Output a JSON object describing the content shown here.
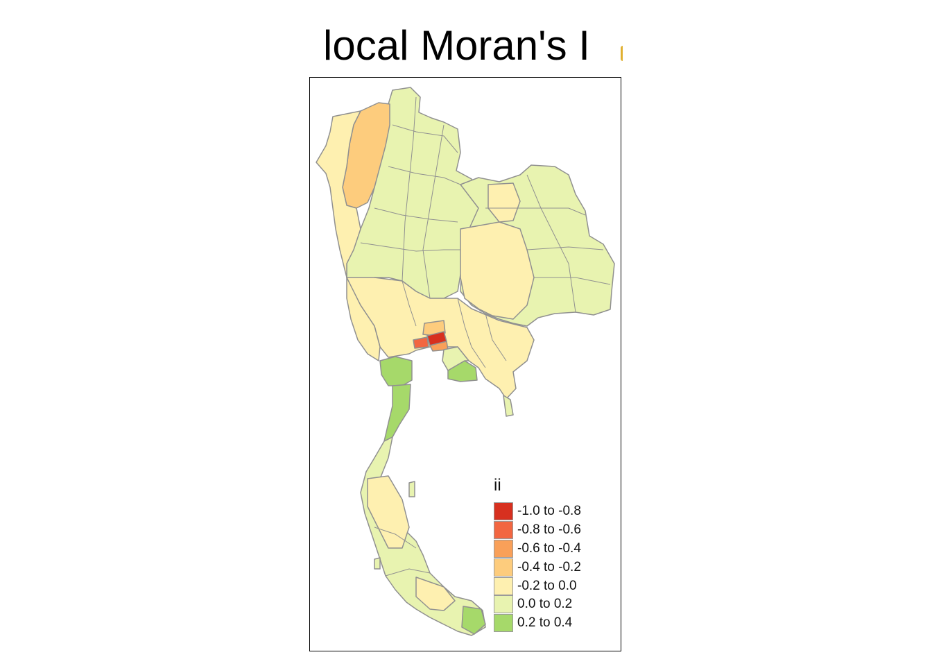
{
  "title": "local Moran's I",
  "legend": {
    "title": "ii",
    "items": [
      {
        "label": "-1.0 to -0.8",
        "color": "#d7301f"
      },
      {
        "label": "-0.8 to -0.6",
        "color": "#f26641"
      },
      {
        "label": "-0.6 to -0.4",
        "color": "#f9a059"
      },
      {
        "label": "-0.4 to -0.2",
        "color": "#fdcc7d"
      },
      {
        "label": "-0.2 to 0.0",
        "color": "#fef0b0"
      },
      {
        "label": "0.0 to 0.2",
        "color": "#e8f3b0"
      },
      {
        "label": "0.2 to 0.4",
        "color": "#a6d96a"
      }
    ]
  },
  "colors": {
    "border": "#909090",
    "background": "#ffffff"
  }
}
